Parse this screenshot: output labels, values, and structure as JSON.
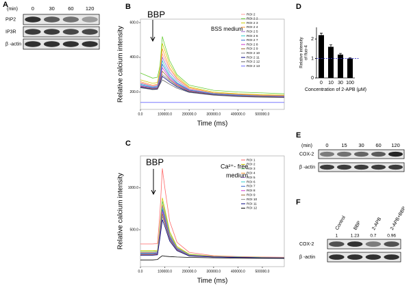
{
  "panels": {
    "A": {
      "letter": "A",
      "unit": "(min)",
      "lanes": [
        "0",
        "30",
        "60",
        "120"
      ],
      "rows": [
        "PIP2",
        "IP3R",
        "β -actin"
      ]
    },
    "E": {
      "letter": "E",
      "unit": "(min)",
      "lanes": [
        "0",
        "15",
        "30",
        "60",
        "120"
      ],
      "rows": [
        "COX-2",
        "β -actin"
      ]
    },
    "F": {
      "letter": "F",
      "lanes": [
        "Control",
        "BBP",
        "2-APB",
        "2-APB+BBP"
      ],
      "ratios": [
        1,
        1.23,
        0.7,
        0.96
      ],
      "rows": [
        "COX-2",
        "β -actin"
      ]
    }
  },
  "chart_data": [
    {
      "type": "line",
      "panel": "B",
      "xlabel": "Time (ms)",
      "ylabel": "Relative calcium intensity",
      "annotations": [
        "BBP",
        "BSS medium"
      ],
      "x": [
        0,
        50000,
        70000,
        80000,
        90000,
        100000,
        120000,
        150000,
        200000,
        300000,
        400000,
        500000,
        590000
      ],
      "xlim": [
        0,
        590000
      ],
      "ylim": [
        100,
        620
      ],
      "xticks": [
        {
          "value": 0,
          "label": "0.0"
        },
        {
          "value": 100000,
          "label": "100000.0"
        },
        {
          "value": 200000,
          "label": "200000.0"
        },
        {
          "value": 300000,
          "label": "300000.0"
        },
        {
          "value": 400000,
          "label": "400000.0"
        },
        {
          "value": 500000,
          "label": "500000.0"
        }
      ],
      "yticks": [
        {
          "value": 200,
          "label": "200.0"
        },
        {
          "value": 400,
          "label": "400.0"
        },
        {
          "value": 600,
          "label": "600.0"
        }
      ],
      "series": [
        {
          "name": "ROI 2",
          "color": "#ff9999",
          "values": [
            255,
            235,
            240,
            310,
            420,
            390,
            330,
            275,
            220,
            195,
            186,
            180,
            178
          ]
        },
        {
          "name": "ROI 2 2",
          "color": "#66cc33",
          "values": [
            310,
            280,
            285,
            350,
            520,
            470,
            380,
            300,
            240,
            210,
            200,
            195,
            190
          ]
        },
        {
          "name": "ROI 2 3",
          "color": "#cccc00",
          "values": [
            270,
            250,
            255,
            330,
            480,
            440,
            360,
            290,
            230,
            200,
            190,
            185,
            182
          ]
        },
        {
          "name": "ROI 2 4",
          "color": "#ff9933",
          "values": [
            260,
            240,
            245,
            320,
            450,
            410,
            340,
            280,
            225,
            195,
            188,
            182,
            180
          ]
        },
        {
          "name": "ROI 2 5",
          "color": "#9966cc",
          "values": [
            250,
            232,
            236,
            300,
            400,
            370,
            315,
            265,
            215,
            192,
            184,
            178,
            176
          ]
        },
        {
          "name": "ROI 2 6",
          "color": "#33cccc",
          "values": [
            245,
            228,
            232,
            290,
            380,
            350,
            300,
            255,
            212,
            190,
            182,
            177,
            175
          ]
        },
        {
          "name": "ROI 2 7",
          "color": "#3366cc",
          "values": [
            240,
            225,
            228,
            280,
            360,
            335,
            290,
            250,
            210,
            188,
            180,
            176,
            174
          ]
        },
        {
          "name": "ROI 2 8",
          "color": "#cc33cc",
          "values": [
            235,
            222,
            225,
            270,
            340,
            320,
            280,
            245,
            208,
            186,
            178,
            175,
            172
          ]
        },
        {
          "name": "ROI 2 9",
          "color": "#996633",
          "values": [
            232,
            220,
            222,
            262,
            320,
            305,
            272,
            240,
            205,
            185,
            177,
            174,
            171
          ]
        },
        {
          "name": "ROI 2 10",
          "color": "#888888",
          "values": [
            230,
            218,
            220,
            255,
            300,
            290,
            265,
            235,
            202,
            184,
            176,
            172,
            170
          ]
        },
        {
          "name": "ROI 2 11",
          "color": "#000080",
          "values": [
            228,
            216,
            218,
            250,
            290,
            280,
            258,
            230,
            200,
            183,
            175,
            171,
            169
          ]
        },
        {
          "name": "ROI 2 12",
          "color": "#666666",
          "values": [
            225,
            214,
            216,
            245,
            270,
            262,
            245,
            222,
            198,
            182,
            174,
            170,
            168
          ]
        },
        {
          "name": "ROI 2 13",
          "color": "#6666ff",
          "values": [
            140,
            140,
            140,
            140,
            140,
            140,
            140,
            140,
            140,
            140,
            140,
            140,
            140
          ]
        }
      ]
    },
    {
      "type": "line",
      "panel": "C",
      "xlabel": "Time (ms)",
      "ylabel": "Relative calcium intensity",
      "annotations": [
        "BBP",
        "Ca²⁺- free",
        "medium"
      ],
      "x": [
        0,
        50000,
        70000,
        80000,
        90000,
        100000,
        120000,
        150000,
        200000,
        300000,
        400000,
        500000,
        590000
      ],
      "xlim": [
        0,
        590000
      ],
      "ylim": [
        60,
        1380
      ],
      "xticks": [
        {
          "value": 0,
          "label": "0.0"
        },
        {
          "value": 100000,
          "label": "100000.0"
        },
        {
          "value": 200000,
          "label": "200000.0"
        },
        {
          "value": 300000,
          "label": "300000.0"
        },
        {
          "value": 400000,
          "label": "400000.0"
        },
        {
          "value": 500000,
          "label": "500000.0"
        }
      ],
      "yticks": [
        {
          "value": 500,
          "label": "500.0"
        },
        {
          "value": 1000,
          "label": "1000.0"
        }
      ],
      "series": [
        {
          "name": "ROI 1",
          "color": "#ff6666",
          "values": [
            330,
            330,
            335,
            700,
            1230,
            1000,
            600,
            350,
            230,
            190,
            180,
            175,
            172
          ]
        },
        {
          "name": "ROI 2",
          "color": "#cccc00",
          "values": [
            250,
            250,
            255,
            550,
            880,
            750,
            480,
            300,
            210,
            185,
            178,
            172,
            170
          ]
        },
        {
          "name": "ROI 3",
          "color": "#66cc66",
          "values": [
            240,
            240,
            245,
            520,
            840,
            720,
            460,
            290,
            205,
            183,
            176,
            171,
            169
          ]
        },
        {
          "name": "ROI 4",
          "color": "#ff9933",
          "values": [
            230,
            230,
            235,
            500,
            800,
            690,
            440,
            285,
            200,
            182,
            175,
            170,
            168
          ]
        },
        {
          "name": "ROI 5",
          "color": "#9966cc",
          "values": [
            225,
            225,
            230,
            480,
            780,
            670,
            430,
            280,
            198,
            180,
            174,
            169,
            167
          ]
        },
        {
          "name": "ROI 6",
          "color": "#33cccc",
          "values": [
            220,
            220,
            225,
            470,
            760,
            650,
            420,
            275,
            196,
            179,
            173,
            168,
            166
          ]
        },
        {
          "name": "ROI 7",
          "color": "#3366cc",
          "values": [
            215,
            215,
            220,
            460,
            740,
            630,
            410,
            270,
            194,
            178,
            172,
            167,
            165
          ]
        },
        {
          "name": "ROI 8",
          "color": "#cc33cc",
          "values": [
            210,
            210,
            215,
            450,
            720,
            610,
            400,
            265,
            192,
            177,
            171,
            166,
            164
          ]
        },
        {
          "name": "ROI 9",
          "color": "#996633",
          "values": [
            205,
            205,
            210,
            430,
            690,
            590,
            390,
            260,
            190,
            176,
            170,
            165,
            163
          ]
        },
        {
          "name": "ROI 10",
          "color": "#888888",
          "values": [
            200,
            200,
            205,
            420,
            660,
            570,
            380,
            255,
            188,
            175,
            169,
            164,
            162
          ]
        },
        {
          "name": "ROI 11",
          "color": "#000080",
          "values": [
            195,
            195,
            200,
            400,
            620,
            540,
            365,
            250,
            186,
            174,
            168,
            163,
            161
          ]
        },
        {
          "name": "ROI 12",
          "color": "#000000",
          "values": [
            140,
            140,
            145,
            170,
            190,
            185,
            180,
            175,
            170,
            165,
            162,
            160,
            158
          ]
        }
      ]
    },
    {
      "type": "bar",
      "panel": "D",
      "xlabel": "Concentration of 2-APB (μM)",
      "ylabel": [
        "Relative intensity",
        "of fluo-4"
      ],
      "categories": [
        "0",
        "10",
        "30",
        "100"
      ],
      "values": [
        2.2,
        1.6,
        1.2,
        1.0
      ],
      "errors": [
        0.1,
        0.1,
        0.06,
        0.03
      ],
      "color": "#000000",
      "ylim": [
        0,
        2.6
      ],
      "yticks": [
        0,
        1,
        2
      ],
      "refline": 1,
      "refline_color": "#3333cc"
    }
  ]
}
